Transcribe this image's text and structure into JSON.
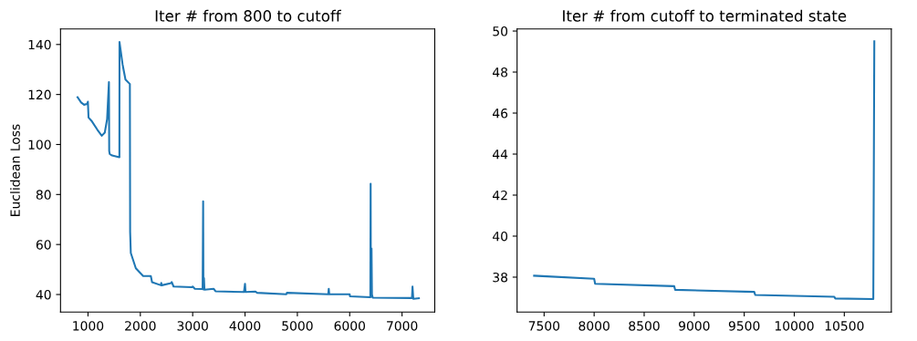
{
  "chart_data": [
    {
      "type": "line",
      "title": "Iter # from 800 to cutoff",
      "ylabel": "Euclidean Loss",
      "xlim": [
        475,
        7625
      ],
      "ylim": [
        33.0,
        146.2
      ],
      "xticks": [
        1000,
        2000,
        3000,
        4000,
        5000,
        6000,
        7000
      ],
      "yticks": [
        40,
        60,
        80,
        100,
        120,
        140
      ],
      "grid": false,
      "legend": false,
      "series": [
        {
          "color": "#1f77b4",
          "x": [
            800,
            868,
            925,
            981,
            998,
            1010,
            1066,
            1179,
            1263,
            1320,
            1365,
            1400,
            1405,
            1415,
            1461,
            1600,
            1602,
            1660,
            1716,
            1800,
            1805,
            1818,
            1914,
            2054,
            2195,
            2200,
            2224,
            2393,
            2400,
            2410,
            2590,
            2600,
            2635,
            2985,
            3000,
            3041,
            3190,
            3200,
            3205,
            3215,
            3225,
            3400,
            3436,
            3980,
            4000,
            4010,
            4200,
            4227,
            4790,
            4800,
            5590,
            5600,
            5610,
            6000,
            6005,
            6395,
            6400,
            6405,
            6417,
            6425,
            6440,
            7190,
            7200,
            7215,
            7322
          ],
          "values": [
            118.9,
            116.8,
            115.9,
            116.2,
            117.1,
            110.8,
            109.5,
            105.9,
            103.5,
            104.7,
            110.1,
            125.0,
            97.4,
            96.2,
            95.6,
            94.9,
            141.0,
            132.1,
            126.0,
            124.2,
            65.0,
            56.6,
            50.5,
            47.4,
            47.4,
            47.4,
            44.9,
            43.7,
            44.6,
            43.7,
            44.6,
            45.0,
            43.2,
            42.9,
            43.2,
            42.3,
            42.2,
            77.3,
            42.0,
            46.6,
            41.9,
            42.3,
            41.3,
            41.0,
            44.3,
            41.0,
            41.2,
            40.7,
            40.1,
            40.7,
            40.1,
            42.3,
            40.1,
            40.1,
            39.3,
            38.9,
            84.3,
            39.0,
            58.4,
            40.0,
            38.7,
            38.6,
            43.2,
            38.3,
            38.5
          ]
        }
      ]
    },
    {
      "type": "line",
      "title": "Iter # from cutoff to terminated state",
      "xlim": [
        7230,
        10970
      ],
      "ylim": [
        36.3,
        50.1
      ],
      "xticks": [
        7500,
        8000,
        8500,
        9000,
        9500,
        10000,
        10500
      ],
      "yticks": [
        38,
        40,
        42,
        44,
        46,
        48,
        50
      ],
      "grid": false,
      "legend": false,
      "series": [
        {
          "color": "#1f77b4",
          "x": [
            7400,
            8000,
            8010,
            8800,
            8810,
            9600,
            9610,
            10400,
            10410,
            10790,
            10800
          ],
          "values": [
            38.07,
            37.92,
            37.68,
            37.56,
            37.38,
            37.28,
            37.13,
            37.04,
            36.96,
            36.93,
            49.5
          ]
        }
      ]
    }
  ]
}
